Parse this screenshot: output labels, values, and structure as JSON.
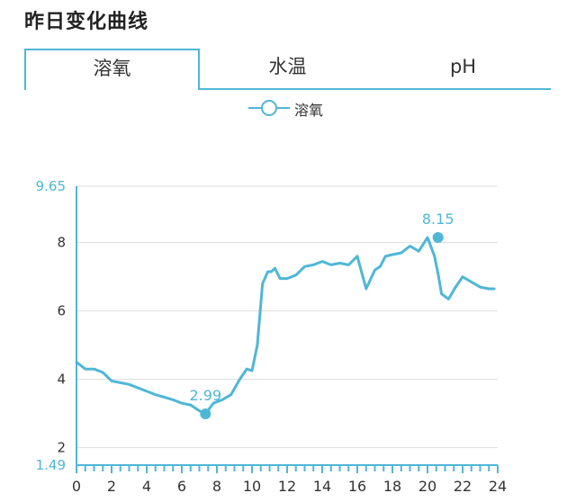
{
  "page": {
    "title": "昨日变化曲线"
  },
  "tabs": [
    {
      "label": "溶氧",
      "active": true
    },
    {
      "label": "水温",
      "active": false
    },
    {
      "label": "pH",
      "active": false
    }
  ],
  "colors": {
    "accent": "#4fb7d6",
    "grid": "#dddddd",
    "axis": "#4fb7d6"
  },
  "legend": {
    "label": "溶氧"
  },
  "chart_data": {
    "type": "line",
    "legend_position": "top-center",
    "grid": true,
    "xlim": [
      0,
      24
    ],
    "ylim": [
      1.49,
      9.65
    ],
    "x_ticks": [
      0,
      2,
      4,
      6,
      8,
      10,
      12,
      14,
      16,
      18,
      20,
      22,
      24
    ],
    "y_ticks": [
      1.49,
      2,
      4,
      6,
      8,
      9.65
    ],
    "y_tick_labels": [
      "1.49",
      "2",
      "4",
      "6",
      "8",
      "9.65"
    ],
    "series": [
      {
        "name": "溶氧",
        "x": [
          0,
          0.5,
          1,
          1.5,
          2,
          2.5,
          3,
          3.5,
          4,
          4.5,
          5,
          5.5,
          6,
          6.5,
          7,
          7.35,
          7.8,
          8.3,
          8.8,
          9.3,
          9.7,
          10.0,
          10.3,
          10.6,
          10.9,
          11.1,
          11.3,
          11.6,
          12,
          12.5,
          13,
          13.5,
          14,
          14.5,
          15,
          15.5,
          16,
          16.5,
          17,
          17.3,
          17.6,
          18,
          18.5,
          19,
          19.5,
          20,
          20.4,
          20.6,
          20.8,
          21.2,
          21.6,
          22,
          22.5,
          23,
          23.5,
          23.8
        ],
        "y": [
          4.5,
          4.3,
          4.3,
          4.2,
          3.95,
          3.9,
          3.85,
          3.75,
          3.65,
          3.55,
          3.48,
          3.4,
          3.3,
          3.25,
          3.08,
          2.99,
          3.3,
          3.4,
          3.55,
          4.0,
          4.3,
          4.25,
          5.0,
          6.8,
          7.15,
          7.15,
          7.25,
          6.95,
          6.95,
          7.05,
          7.3,
          7.35,
          7.45,
          7.35,
          7.4,
          7.35,
          7.6,
          6.65,
          7.2,
          7.3,
          7.6,
          7.65,
          7.7,
          7.9,
          7.75,
          8.15,
          7.6,
          7.1,
          6.5,
          6.35,
          6.7,
          7.0,
          6.85,
          6.7,
          6.65,
          6.65
        ],
        "annotations": [
          {
            "x": 7.35,
            "y": 2.99,
            "label": "2.99"
          },
          {
            "x": 20.6,
            "y": 8.15,
            "label": "8.15"
          }
        ]
      }
    ]
  }
}
